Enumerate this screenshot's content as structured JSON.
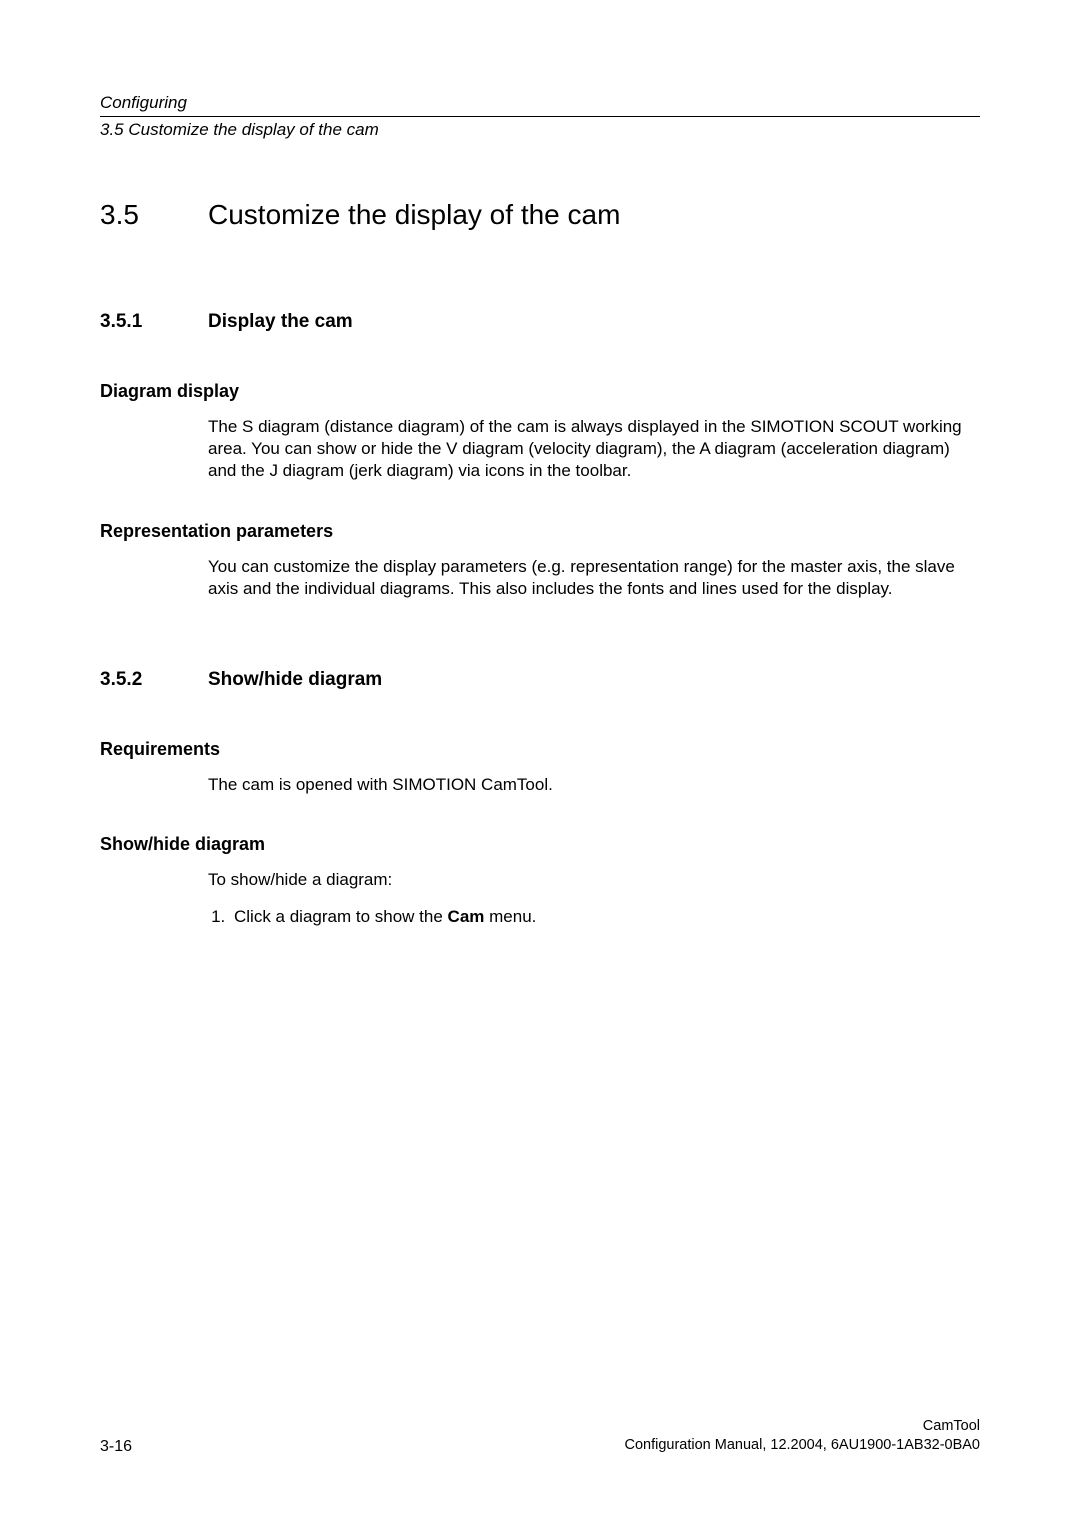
{
  "header": {
    "chapter": "Configuring",
    "section_label": "3.5 Customize the display of the cam"
  },
  "h1": {
    "num": "3.5",
    "title": "Customize the display of the cam"
  },
  "sec1": {
    "num": "3.5.1",
    "title": "Display the cam",
    "sub1": {
      "heading": "Diagram display",
      "body": "The S diagram (distance diagram) of the cam is always displayed in the SIMOTION SCOUT working area. You can show or hide the V diagram (velocity diagram), the A diagram (acceleration diagram) and the J diagram (jerk diagram) via icons in the toolbar."
    },
    "sub2": {
      "heading": "Representation parameters",
      "body": "You can customize the display parameters (e.g. representation range) for the master axis, the slave axis and the individual diagrams. This also includes the fonts and lines used for the display."
    }
  },
  "sec2": {
    "num": "3.5.2",
    "title": "Show/hide diagram",
    "req": {
      "heading": "Requirements",
      "body": "The cam is opened with SIMOTION CamTool."
    },
    "proc": {
      "heading": "Show/hide diagram",
      "intro": "To show/hide a diagram:",
      "step_prefix": "Click a diagram to show the ",
      "step_bold": "Cam",
      "step_suffix": " menu."
    }
  },
  "footer": {
    "page": "3-16",
    "line1": "CamTool",
    "line2": "Configuration Manual, 12.2004, 6AU1900-1AB32-0BA0"
  }
}
